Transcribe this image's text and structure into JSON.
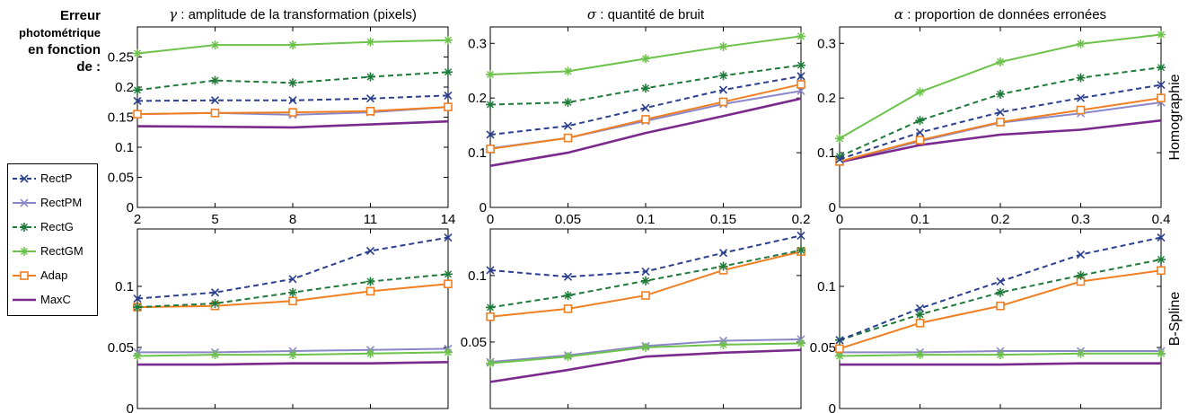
{
  "side_title": {
    "line1": "Erreur",
    "line2": "photométrique",
    "line3": "en fonction",
    "line4": "de :"
  },
  "row_labels": [
    "Homographie",
    "B-Spline"
  ],
  "series_styles": [
    {
      "name": "RectP",
      "color": "#2b3f8f",
      "dash": "6,4",
      "marker": "x"
    },
    {
      "name": "RectPM",
      "color": "#8a87c9",
      "dash": "",
      "marker": "x"
    },
    {
      "name": "RectG",
      "color": "#1f7a3a",
      "dash": "6,4",
      "marker": "star"
    },
    {
      "name": "RectGM",
      "color": "#6cc24a",
      "dash": "",
      "marker": "star"
    },
    {
      "name": "Adap",
      "color": "#f07f22",
      "dash": "",
      "marker": "square"
    },
    {
      "name": "MaxC",
      "color": "#7a2a8c",
      "dash": "",
      "marker": "none"
    }
  ],
  "chart_data": [
    {
      "type": "line",
      "title_symbol": "γ",
      "title": " : amplitude de la transformation (pixels)",
      "x": [
        2,
        5,
        8,
        11,
        14
      ],
      "xticks": [
        "2",
        "5",
        "8",
        "11",
        "14"
      ],
      "xlim": [
        2,
        14
      ],
      "ylim": [
        0,
        0.3
      ],
      "yticks": [
        0,
        0.05,
        0.1,
        0.15,
        0.2,
        0.25
      ],
      "yticklabels": [
        "0",
        "0.05",
        "0.1",
        "0.15",
        "0.2",
        "0.25"
      ],
      "series": [
        {
          "name": "RectP",
          "values": [
            0.177,
            0.178,
            0.178,
            0.181,
            0.186
          ]
        },
        {
          "name": "RectPM",
          "values": [
            0.155,
            0.157,
            0.154,
            0.158,
            0.167
          ]
        },
        {
          "name": "RectG",
          "values": [
            0.195,
            0.211,
            0.207,
            0.217,
            0.225
          ]
        },
        {
          "name": "RectGM",
          "values": [
            0.256,
            0.27,
            0.27,
            0.275,
            0.278
          ]
        },
        {
          "name": "Adap",
          "values": [
            0.155,
            0.157,
            0.158,
            0.16,
            0.167
          ]
        },
        {
          "name": "MaxC",
          "values": [
            0.135,
            0.134,
            0.133,
            0.138,
            0.143
          ]
        }
      ]
    },
    {
      "type": "line",
      "title_symbol": "σ",
      "title": " : quantité de bruit",
      "x": [
        0,
        0.05,
        0.1,
        0.15,
        0.2
      ],
      "xticks": [
        "0",
        "0.05",
        "0.1",
        "0.15",
        "0.2"
      ],
      "xlim": [
        0,
        0.2
      ],
      "ylim": [
        0,
        0.33
      ],
      "yticks": [
        0,
        0.1,
        0.2,
        0.3
      ],
      "yticklabels": [
        "0",
        "0.1",
        "0.2",
        "0.3"
      ],
      "series": [
        {
          "name": "RectP",
          "values": [
            0.133,
            0.149,
            0.182,
            0.215,
            0.24
          ]
        },
        {
          "name": "RectPM",
          "values": [
            0.108,
            0.127,
            0.158,
            0.189,
            0.213
          ]
        },
        {
          "name": "RectG",
          "values": [
            0.188,
            0.192,
            0.218,
            0.241,
            0.26
          ]
        },
        {
          "name": "RectGM",
          "values": [
            0.243,
            0.249,
            0.272,
            0.294,
            0.313
          ]
        },
        {
          "name": "Adap",
          "values": [
            0.107,
            0.127,
            0.161,
            0.193,
            0.225
          ]
        },
        {
          "name": "MaxC",
          "values": [
            0.076,
            0.1,
            0.136,
            0.167,
            0.199
          ]
        }
      ]
    },
    {
      "type": "line",
      "title_symbol": "α",
      "title": " : proportion de données erronées",
      "x": [
        0,
        0.1,
        0.2,
        0.3,
        0.4
      ],
      "xticks": [
        "0",
        "0.1",
        "0.2",
        "0.3",
        "0.4"
      ],
      "xlim": [
        0,
        0.4
      ],
      "ylim": [
        0,
        0.33
      ],
      "yticks": [
        0,
        0.1,
        0.2,
        0.3
      ],
      "yticklabels": [
        "0",
        "0.1",
        "0.2",
        "0.3"
      ],
      "series": [
        {
          "name": "RectP",
          "values": [
            0.088,
            0.137,
            0.174,
            0.2,
            0.224
          ]
        },
        {
          "name": "RectPM",
          "values": [
            0.083,
            0.121,
            0.155,
            0.172,
            0.192
          ]
        },
        {
          "name": "RectG",
          "values": [
            0.093,
            0.159,
            0.207,
            0.237,
            0.256
          ]
        },
        {
          "name": "RectGM",
          "values": [
            0.126,
            0.211,
            0.266,
            0.299,
            0.316
          ]
        },
        {
          "name": "Adap",
          "values": [
            0.084,
            0.123,
            0.156,
            0.178,
            0.2
          ]
        },
        {
          "name": "MaxC",
          "values": [
            0.083,
            0.114,
            0.133,
            0.142,
            0.159
          ]
        }
      ]
    },
    {
      "type": "line",
      "title": "",
      "x": [
        2,
        5,
        8,
        11,
        14
      ],
      "xticks": [],
      "xlim": [
        2,
        14
      ],
      "ylim": [
        0,
        0.147
      ],
      "yticks": [
        0,
        0.05,
        0.1
      ],
      "yticklabels": [
        "0",
        "0.05",
        "0.1"
      ],
      "series": [
        {
          "name": "RectP",
          "values": [
            0.09,
            0.095,
            0.106,
            0.129,
            0.14
          ]
        },
        {
          "name": "RectPM",
          "values": [
            0.046,
            0.046,
            0.047,
            0.048,
            0.049
          ]
        },
        {
          "name": "RectG",
          "values": [
            0.083,
            0.086,
            0.095,
            0.104,
            0.11
          ]
        },
        {
          "name": "RectGM",
          "values": [
            0.043,
            0.044,
            0.044,
            0.045,
            0.046
          ]
        },
        {
          "name": "Adap",
          "values": [
            0.083,
            0.084,
            0.088,
            0.096,
            0.102
          ]
        },
        {
          "name": "MaxC",
          "values": [
            0.036,
            0.036,
            0.037,
            0.037,
            0.038
          ]
        }
      ]
    },
    {
      "type": "line",
      "title": "",
      "x": [
        0,
        0.05,
        0.1,
        0.15,
        0.2
      ],
      "xticks": [],
      "xlim": [
        0,
        0.2
      ],
      "ylim": [
        0,
        0.135
      ],
      "yticks": [
        0.05,
        0.1
      ],
      "yticklabels": [
        "0.05",
        "0.1"
      ],
      "series": [
        {
          "name": "RectP",
          "values": [
            0.104,
            0.099,
            0.103,
            0.117,
            0.13
          ]
        },
        {
          "name": "RectPM",
          "values": [
            0.035,
            0.04,
            0.047,
            0.051,
            0.052
          ]
        },
        {
          "name": "RectG",
          "values": [
            0.076,
            0.085,
            0.096,
            0.107,
            0.119
          ]
        },
        {
          "name": "RectGM",
          "values": [
            0.034,
            0.039,
            0.046,
            0.048,
            0.049
          ]
        },
        {
          "name": "Adap",
          "values": [
            0.069,
            0.075,
            0.085,
            0.104,
            0.118
          ]
        },
        {
          "name": "MaxC",
          "values": [
            0.02,
            0.029,
            0.039,
            0.042,
            0.044
          ]
        }
      ]
    },
    {
      "type": "line",
      "title": "",
      "x": [
        0,
        0.1,
        0.2,
        0.3,
        0.4
      ],
      "xticks": [],
      "xlim": [
        0,
        0.4
      ],
      "ylim": [
        0,
        0.147
      ],
      "yticks": [
        0,
        0.05,
        0.1
      ],
      "yticklabels": [
        "0",
        "0.05",
        "0.1"
      ],
      "series": [
        {
          "name": "RectP",
          "values": [
            0.056,
            0.082,
            0.104,
            0.126,
            0.14
          ]
        },
        {
          "name": "RectPM",
          "values": [
            0.046,
            0.046,
            0.047,
            0.047,
            0.047
          ]
        },
        {
          "name": "RectG",
          "values": [
            0.056,
            0.077,
            0.095,
            0.109,
            0.122
          ]
        },
        {
          "name": "RectGM",
          "values": [
            0.043,
            0.044,
            0.044,
            0.045,
            0.045
          ]
        },
        {
          "name": "Adap",
          "values": [
            0.049,
            0.07,
            0.084,
            0.104,
            0.113
          ]
        },
        {
          "name": "MaxC",
          "values": [
            0.036,
            0.036,
            0.036,
            0.037,
            0.037
          ]
        }
      ]
    }
  ]
}
